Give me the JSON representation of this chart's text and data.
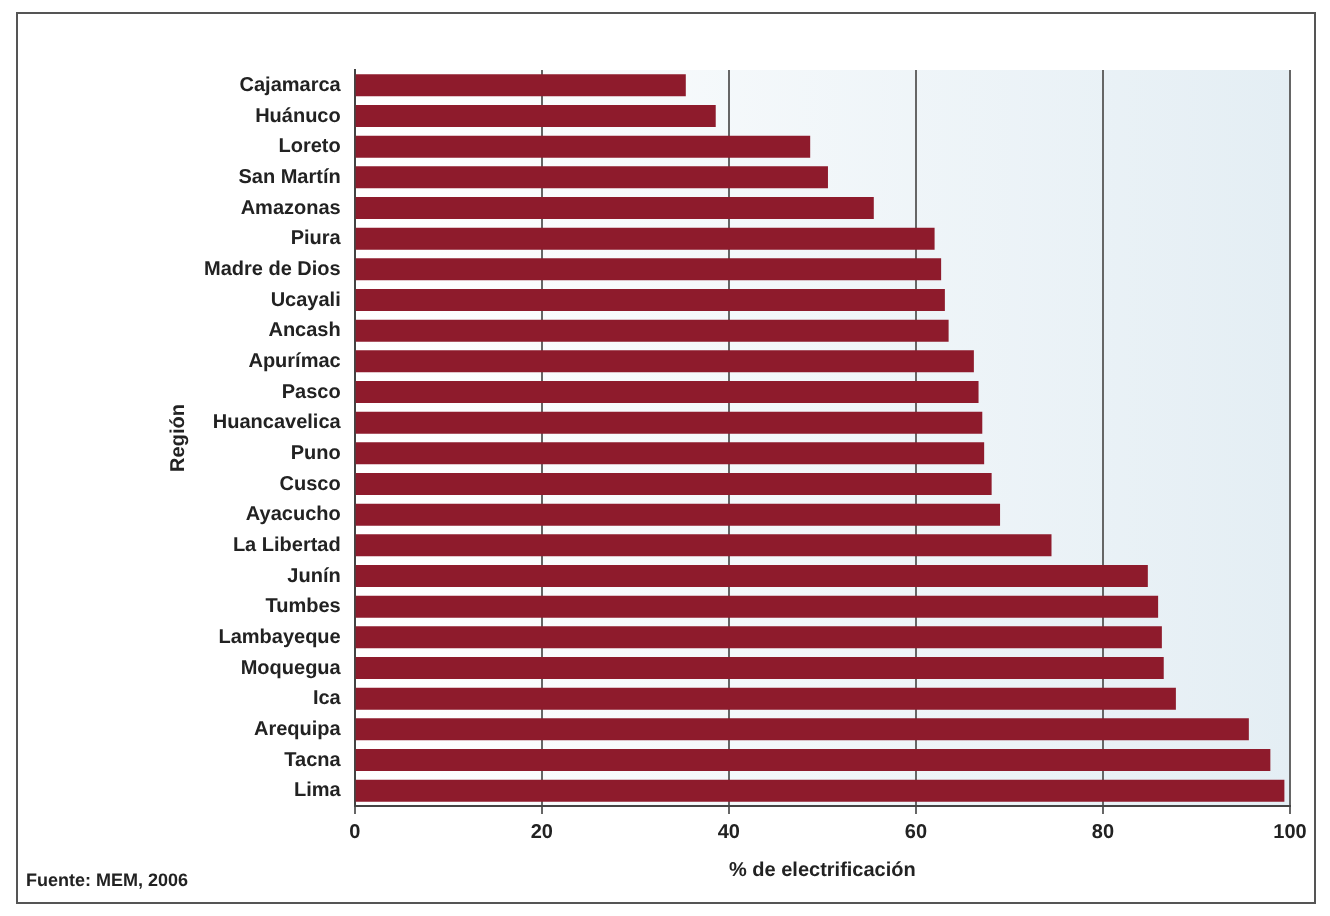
{
  "chart_data": {
    "type": "bar",
    "orientation": "horizontal",
    "xlabel": "% de electrificación",
    "ylabel": "Región",
    "categories": [
      "Cajamarca",
      "Huánuco",
      "Loreto",
      "San Martín",
      "Amazonas",
      "Piura",
      "Madre de Dios",
      "Ucayali",
      "Ancash",
      "Apurímac",
      "Pasco",
      "Huancavelica",
      "Puno",
      "Cusco",
      "Ayacucho",
      "La Libertad",
      "Junín",
      "Tumbes",
      "Lambayeque",
      "Moquegua",
      "Ica",
      "Arequipa",
      "Tacna",
      "Lima"
    ],
    "values": [
      35.4,
      38.6,
      48.7,
      50.6,
      55.5,
      62,
      62.7,
      63.1,
      63.5,
      66.2,
      66.7,
      67.1,
      67.3,
      68.1,
      69,
      74.5,
      84.8,
      85.9,
      86.3,
      86.5,
      87.8,
      95.6,
      97.9,
      99.4
    ],
    "color": "#8e1b2c",
    "xlim": [
      0,
      100
    ],
    "xticks": [
      0,
      20,
      40,
      60,
      80,
      100
    ],
    "grid": "x",
    "legend": false,
    "annotations": [
      "Fuente: MEM, 2006"
    ]
  }
}
